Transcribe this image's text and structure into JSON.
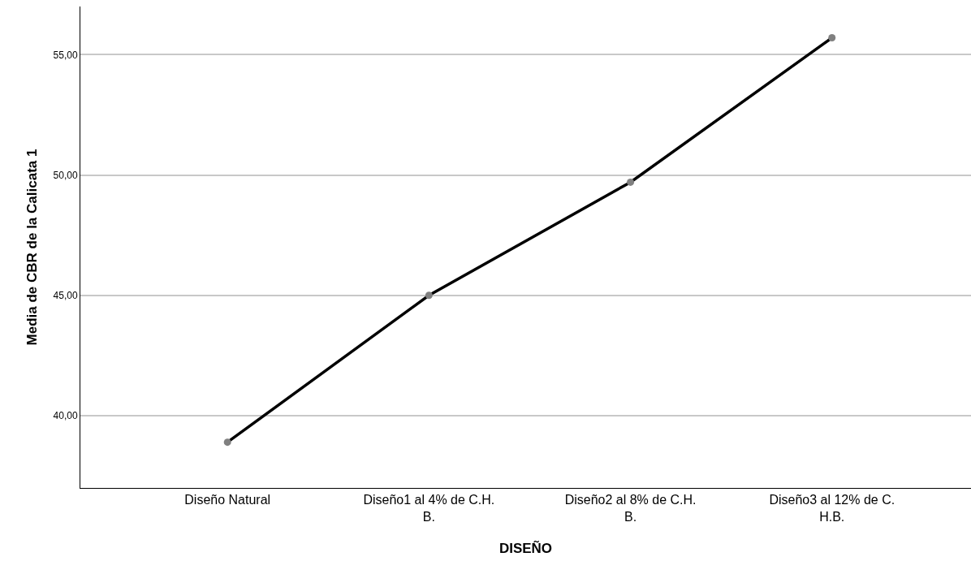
{
  "chart_data": {
    "type": "line",
    "xlabel": "DISEÑO",
    "ylabel": "Media de CBR de la Calicata 1",
    "categories": [
      "Diseño Natural",
      "Diseño1 al 4% de C.H. B.",
      "Diseño2 al 8% de C.H. B.",
      "Diseño3 al 12% de C. H.B."
    ],
    "series": [
      {
        "color": "#000000",
        "values": [
          38.9,
          45.0,
          49.7,
          55.7
        ]
      }
    ],
    "ylim": [
      37,
      57
    ],
    "yticks": [
      {
        "value": 40,
        "label": "40,00"
      },
      {
        "value": 45,
        "label": "45,00"
      },
      {
        "value": 50,
        "label": "50,00"
      },
      {
        "value": 55,
        "label": "55,00"
      }
    ],
    "grid": "y",
    "marker": "circle",
    "line_style": "solid"
  }
}
